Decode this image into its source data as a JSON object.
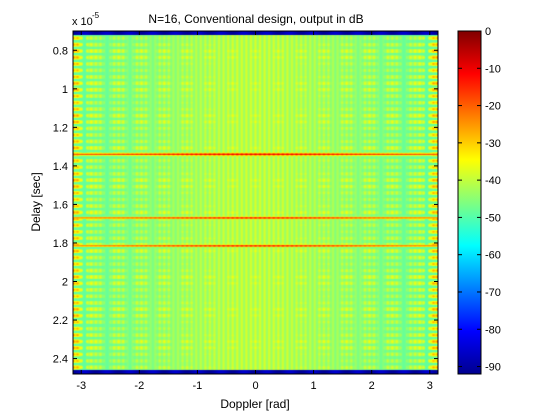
{
  "chart_data": {
    "type": "heatmap",
    "title": "N=16, Conventional design, output in dB",
    "xlabel": "Doppler [rad]",
    "ylabel": "Delay [sec]",
    "y_multiplier_label": "x 10",
    "y_multiplier_exponent": "-5",
    "xlim": [
      -3.14159,
      3.14159
    ],
    "ylim": [
      0.7,
      2.48
    ],
    "y_reversed": true,
    "x_ticks": [
      -3,
      -2,
      -1,
      0,
      1,
      2,
      3
    ],
    "x_tick_labels": [
      "-3",
      "-2",
      "-1",
      "0",
      "1",
      "2",
      "3"
    ],
    "y_ticks": [
      0.8,
      1.0,
      1.2,
      1.4,
      1.6,
      1.8,
      2.0,
      2.2,
      2.4
    ],
    "y_tick_labels": [
      "0.8",
      "1",
      "1.2",
      "1.4",
      "1.6",
      "1.8",
      "2",
      "2.2",
      "2.4"
    ],
    "colorbar": {
      "colormap": "jet",
      "range": [
        -92,
        0
      ],
      "ticks": [
        0,
        -10,
        -20,
        -30,
        -40,
        -50,
        -60,
        -70,
        -80,
        -90
      ],
      "tick_labels": [
        "0",
        "-10",
        "-20",
        "-30",
        "-40",
        "-50",
        "-60",
        "-70",
        "-80",
        "-90"
      ]
    },
    "background_level": -45,
    "peak_rows": [
      {
        "delay": 1.34,
        "level": -8
      },
      {
        "delay": 1.67,
        "level": -12
      },
      {
        "delay": 1.815,
        "level": -12
      }
    ],
    "grid": false
  }
}
